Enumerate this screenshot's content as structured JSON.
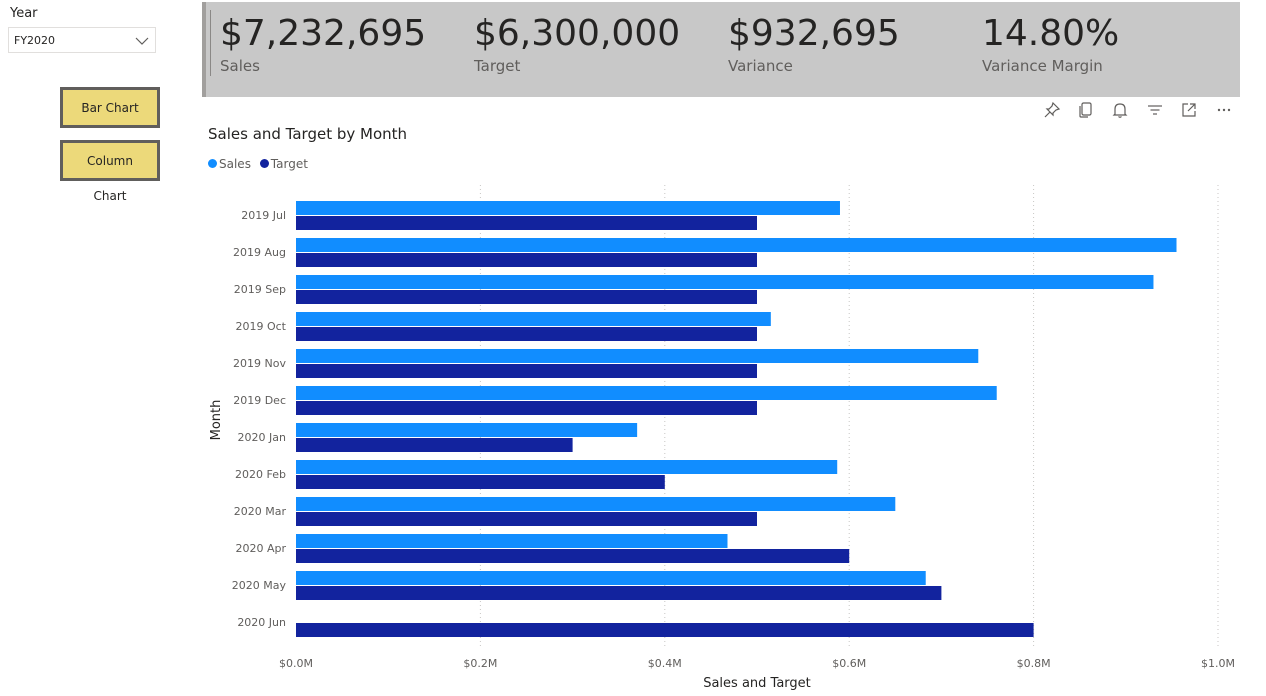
{
  "slicer": {
    "title": "Year",
    "value": "FY2020"
  },
  "buttons": {
    "bar": "Bar Chart",
    "column": "Column Chart"
  },
  "kpis": [
    {
      "value": "$7,232,695",
      "label": "Sales"
    },
    {
      "value": "$6,300,000",
      "label": "Target"
    },
    {
      "value": "$932,695",
      "label": "Variance"
    },
    {
      "value": "14.80%",
      "label": "Variance Margin"
    }
  ],
  "toolbar_icons": [
    "pin-icon",
    "copy-icon",
    "bell-icon",
    "filter-icon",
    "focus-mode-icon",
    "more-options-icon"
  ],
  "colors": {
    "sales": "#118dff",
    "target": "#12239e",
    "kpi_bg": "#c8c8c8",
    "button_bg": "#ecd97a"
  },
  "chart_data": {
    "type": "bar",
    "orientation": "horizontal",
    "title": "Sales and Target by Month",
    "xlabel": "Sales and Target",
    "ylabel": "Month",
    "categories": [
      "2019 Jul",
      "2019 Aug",
      "2019 Sep",
      "2019 Oct",
      "2019 Nov",
      "2019 Dec",
      "2020 Jan",
      "2020 Feb",
      "2020 Mar",
      "2020 Apr",
      "2020 May",
      "2020 Jun"
    ],
    "series": [
      {
        "name": "Sales",
        "color": "#118dff",
        "values": [
          590000,
          955000,
          930000,
          515000,
          740000,
          760000,
          370000,
          587000,
          650000,
          468000,
          683000,
          null
        ]
      },
      {
        "name": "Target",
        "color": "#12239e",
        "values": [
          500000,
          500000,
          500000,
          500000,
          500000,
          500000,
          300000,
          400000,
          500000,
          600000,
          700000,
          800000
        ]
      }
    ],
    "xlim": [
      0,
      1000000
    ],
    "xticks": [
      0,
      200000,
      400000,
      600000,
      800000,
      1000000
    ],
    "xtick_labels": [
      "$0.0M",
      "$0.2M",
      "$0.4M",
      "$0.6M",
      "$0.8M",
      "$1.0M"
    ],
    "grid": "vertical dotted",
    "legend": "top-left"
  }
}
